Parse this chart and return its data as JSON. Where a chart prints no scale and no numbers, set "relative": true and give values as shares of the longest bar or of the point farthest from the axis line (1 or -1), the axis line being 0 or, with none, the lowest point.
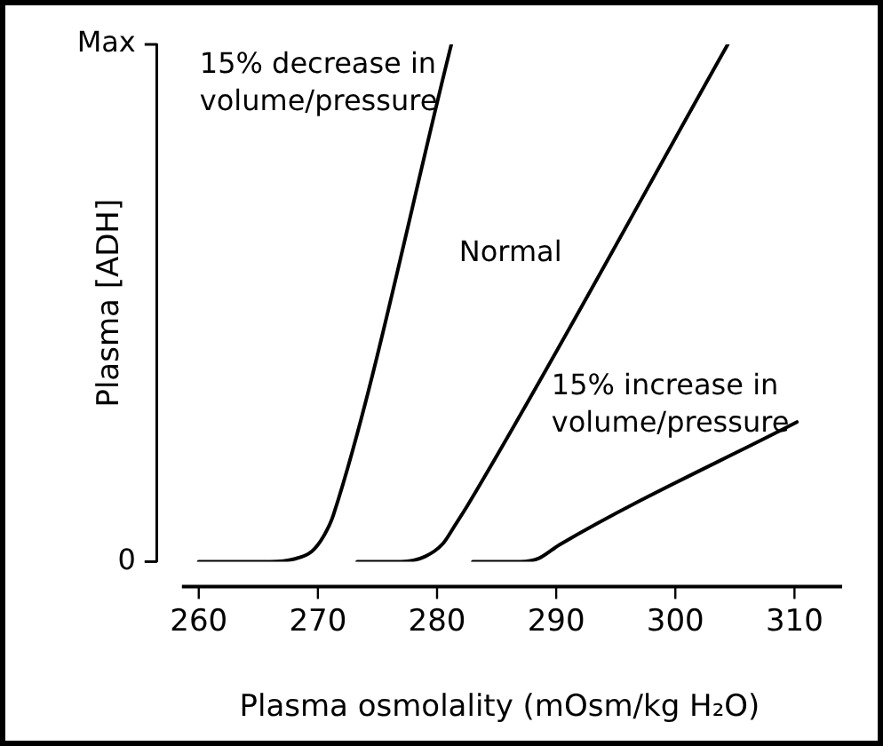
{
  "chart_data": {
    "type": "line",
    "xlabel": "Plasma osmolality (mOsm/kg H₂O)",
    "ylabel": "Plasma [ADH]",
    "xlim": [
      256.5,
      314
    ],
    "xticks": [
      260,
      270,
      280,
      290,
      300,
      310
    ],
    "relative": true,
    "annotations": [
      "Max",
      "0"
    ],
    "grid": false,
    "legend": false,
    "marker": "none",
    "line_style": "solid",
    "series": [
      {
        "name": "15% decrease in volume/pressure",
        "color": "#000000",
        "x": [
          260,
          266,
          268,
          269.5,
          270.5,
          271.3,
          281.2
        ],
        "values": [
          0,
          0,
          0.005,
          0.02,
          0.05,
          0.09,
          1
        ]
      },
      {
        "name": "Normal",
        "color": "#000000",
        "x": [
          273.3,
          277,
          279,
          280.5,
          281.5,
          282.6,
          304.4
        ],
        "values": [
          0,
          0,
          0.01,
          0.035,
          0.07,
          0.11,
          1
        ]
      },
      {
        "name": "15% increase in volume/pressure",
        "color": "#000000",
        "x": [
          283,
          287,
          288.5,
          290.3,
          310.2
        ],
        "values": [
          0,
          0,
          0.006,
          0.033,
          0.27
        ]
      }
    ]
  }
}
